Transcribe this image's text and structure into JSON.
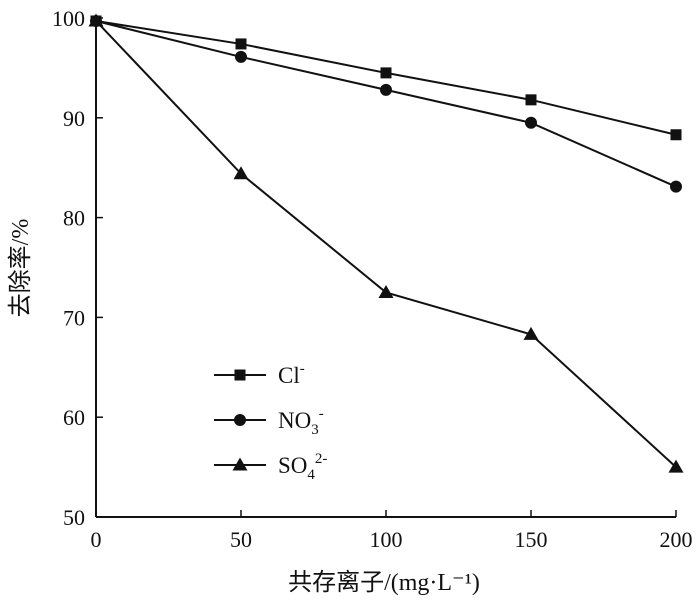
{
  "chart_data": {
    "type": "line",
    "title": "",
    "xlabel": "共存离子/(mg·L⁻¹)",
    "ylabel": "去除率/%",
    "x": [
      0,
      50,
      100,
      150,
      200
    ],
    "xticks": [
      "0",
      "50",
      "100",
      "150",
      "200"
    ],
    "yticks": [
      "50",
      "60",
      "70",
      "80",
      "90",
      "100"
    ],
    "xlim": [
      0,
      200
    ],
    "ylim": [
      50,
      100
    ],
    "grid": false,
    "legend_position": "lower-left",
    "series": [
      {
        "name": "Cl⁻",
        "legend": {
          "main": "Cl",
          "sub": "",
          "sup": "-"
        },
        "marker": "square",
        "values": [
          99.7,
          97.4,
          94.5,
          91.8,
          88.3
        ]
      },
      {
        "name": "NO₃⁻",
        "legend": {
          "main": "NO",
          "sub": "3",
          "sup": "-"
        },
        "marker": "circle",
        "values": [
          99.7,
          96.1,
          92.8,
          89.5,
          83.1
        ]
      },
      {
        "name": "SO₄²⁻",
        "legend": {
          "main": "SO",
          "sub": "4",
          "sup": "2-"
        },
        "marker": "triangle",
        "values": [
          99.7,
          84.4,
          72.5,
          68.3,
          55.0
        ]
      }
    ]
  }
}
